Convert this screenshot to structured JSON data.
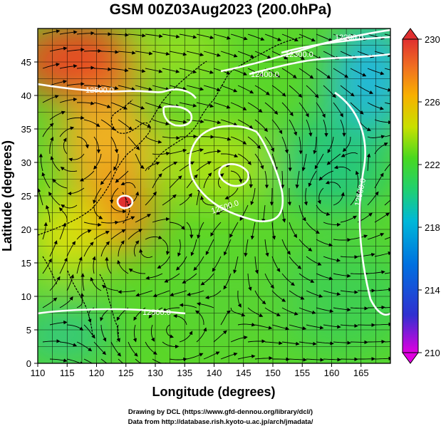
{
  "title": "GSM 00Z03Aug2023 (200.0hPa)",
  "x_axis": {
    "label": "Longitude (degrees)",
    "ticks": [
      "110",
      "115",
      "120",
      "125",
      "130",
      "135",
      "140",
      "145",
      "150",
      "155",
      "160",
      "165"
    ],
    "range": [
      110,
      170
    ]
  },
  "y_axis": {
    "label": "Latitude  (degrees)",
    "ticks": [
      "0",
      "5",
      "10",
      "15",
      "20",
      "25",
      "30",
      "35",
      "40",
      "45"
    ],
    "range": [
      0,
      50
    ]
  },
  "colorbar": {
    "ticks": [
      "210",
      "214",
      "218",
      "222",
      "226",
      "230"
    ],
    "min": 210,
    "max": 230,
    "colors": [
      "#e000e0",
      "#3030d0",
      "#0070e0",
      "#00b8d8",
      "#20d070",
      "#48d820",
      "#c8e000",
      "#f8b000",
      "#f07020",
      "#e03030"
    ]
  },
  "contour_labels": [
    "12200.0",
    "12300.0",
    "12400.0",
    "12500.0",
    "12500.0",
    "12500.0",
    "12500.0",
    "12500.0",
    "12500.0"
  ],
  "credits": {
    "line1": "Drawing by DCL (https://www.gfd-dennou.org/library/dcl/)",
    "line2": "Data from http://database.rish.kyoto-u.ac.jp/arch/jmadata/"
  },
  "chart_data": {
    "type": "heatmap",
    "title": "GSM 00Z03Aug2023 (200.0hPa)",
    "xlabel": "Longitude (degrees)",
    "ylabel": "Latitude  (degrees)",
    "xlim": [
      110,
      170
    ],
    "ylim": [
      0,
      50
    ],
    "colorbar_range": [
      210,
      230
    ],
    "contour_levels": [
      12200,
      12300,
      12400,
      12500
    ],
    "field_centers": [
      {
        "lon": 114,
        "lat": 47,
        "value": 229
      },
      {
        "lon": 124,
        "lat": 26,
        "value": 229
      },
      {
        "lon": 120,
        "lat": 24,
        "value": 227
      },
      {
        "lon": 112,
        "lat": 30,
        "value": 226
      },
      {
        "lon": 131,
        "lat": 47,
        "value": 224
      },
      {
        "lon": 168,
        "lat": 45,
        "value": 218
      },
      {
        "lon": 160,
        "lat": 36,
        "value": 221
      },
      {
        "lon": 160,
        "lat": 16,
        "value": 222
      },
      {
        "lon": 140,
        "lat": 12,
        "value": 222
      },
      {
        "lon": 145,
        "lat": 30,
        "value": 224
      }
    ]
  }
}
